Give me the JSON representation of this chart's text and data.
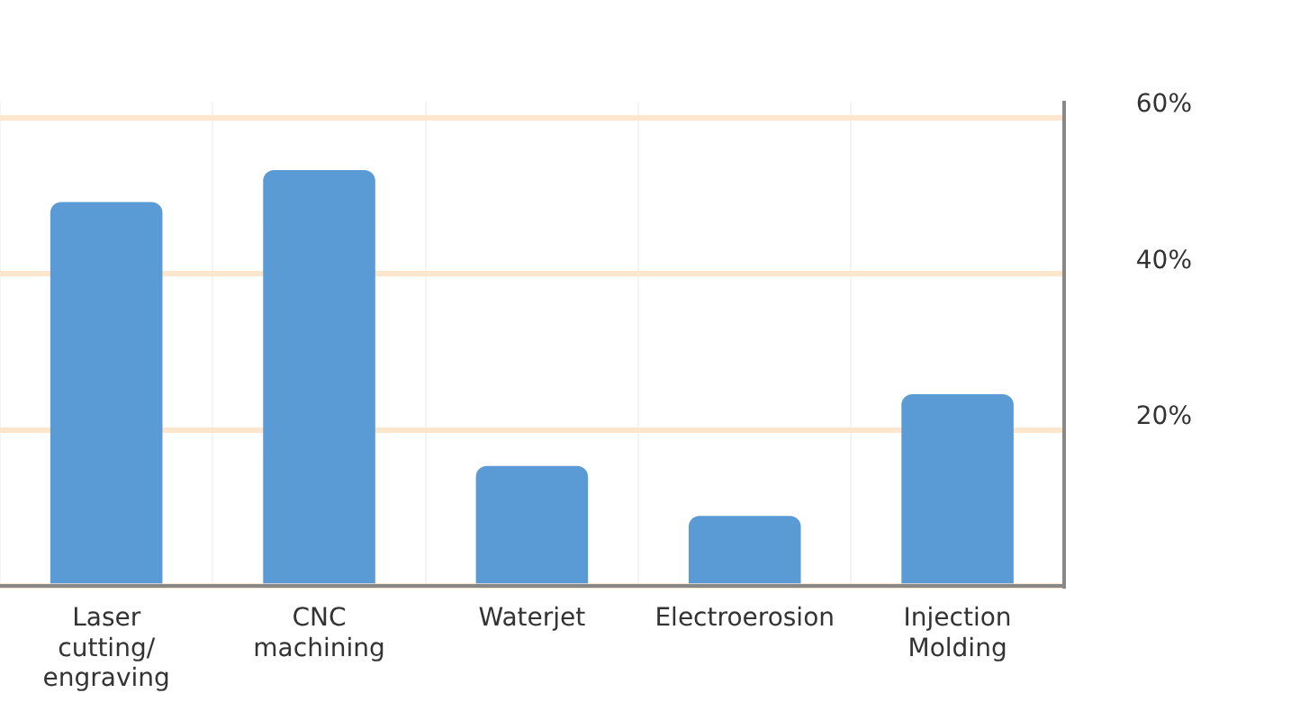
{
  "chart_data": {
    "type": "bar",
    "categories": [
      "Laser cutting/ engraving",
      "CNC machining",
      "Waterjet",
      "Electroerosion",
      "Injection Molding"
    ],
    "values": [
      49.2,
      53.3,
      15.4,
      9,
      24.6
    ],
    "color": "#5b9bd5",
    "ylim": [
      0,
      62
    ],
    "yticks": [
      {
        "value": 0,
        "label": null
      },
      {
        "value": 20,
        "label": "20%"
      },
      {
        "value": 40,
        "label": "40%"
      },
      {
        "value": 60,
        "label": "60%"
      }
    ],
    "grid": true
  }
}
